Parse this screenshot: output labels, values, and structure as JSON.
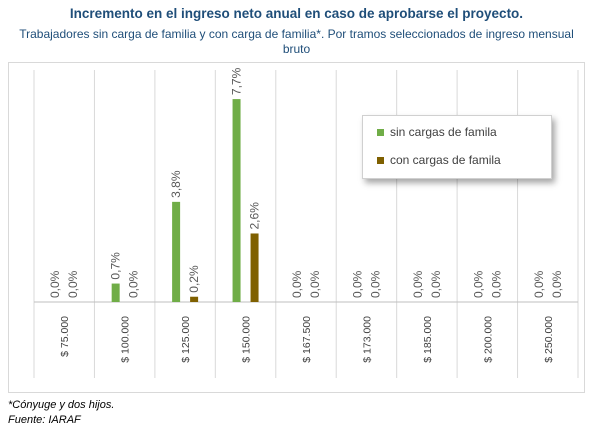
{
  "title": "Incremento en el ingreso neto anual en caso de aprobarse el proyecto.",
  "subtitle": "Trabajadores sin carga de familia y con carga de familia*. Por tramos seleccionados de ingreso mensual bruto",
  "footnote": "*Cónyuge y dos hijos.",
  "source": "Fuente: IARAF",
  "chart_data": {
    "type": "bar",
    "title": "Incremento en el ingreso neto anual en caso de aprobarse el proyecto.",
    "subtitle": "Trabajadores sin carga de familia y con carga de familia*. Por tramos seleccionados de ingreso mensual bruto",
    "categories": [
      "$ 75.000",
      "$ 100.000",
      "$ 125.000",
      "$ 150.000",
      "$ 167.500",
      "$ 173.000",
      "$ 185.000",
      "$ 200.000",
      "$ 250.000"
    ],
    "series": [
      {
        "name": "sin cargas de famila",
        "color": "#70ad47",
        "values": [
          0.0,
          0.7,
          3.8,
          7.7,
          0.0,
          0.0,
          0.0,
          0.0,
          0.0
        ],
        "labels": [
          "0,0%",
          "0,7%",
          "3,8%",
          "7,7%",
          "0,0%",
          "0,0%",
          "0,0%",
          "0,0%",
          "0,0%"
        ]
      },
      {
        "name": "con cargas de famila",
        "color": "#7f6000",
        "values": [
          0.0,
          0.0,
          0.2,
          2.6,
          0.0,
          0.0,
          0.0,
          0.0,
          0.0
        ],
        "labels": [
          "0,0%",
          "0,0%",
          "0,2%",
          "2,6%",
          "0,0%",
          "0,0%",
          "0,0%",
          "0,0%",
          "0,0%"
        ]
      }
    ],
    "ylim": [
      0,
      8.5
    ],
    "unit": "%",
    "grid": "vertical",
    "legend_position": "top-right"
  }
}
